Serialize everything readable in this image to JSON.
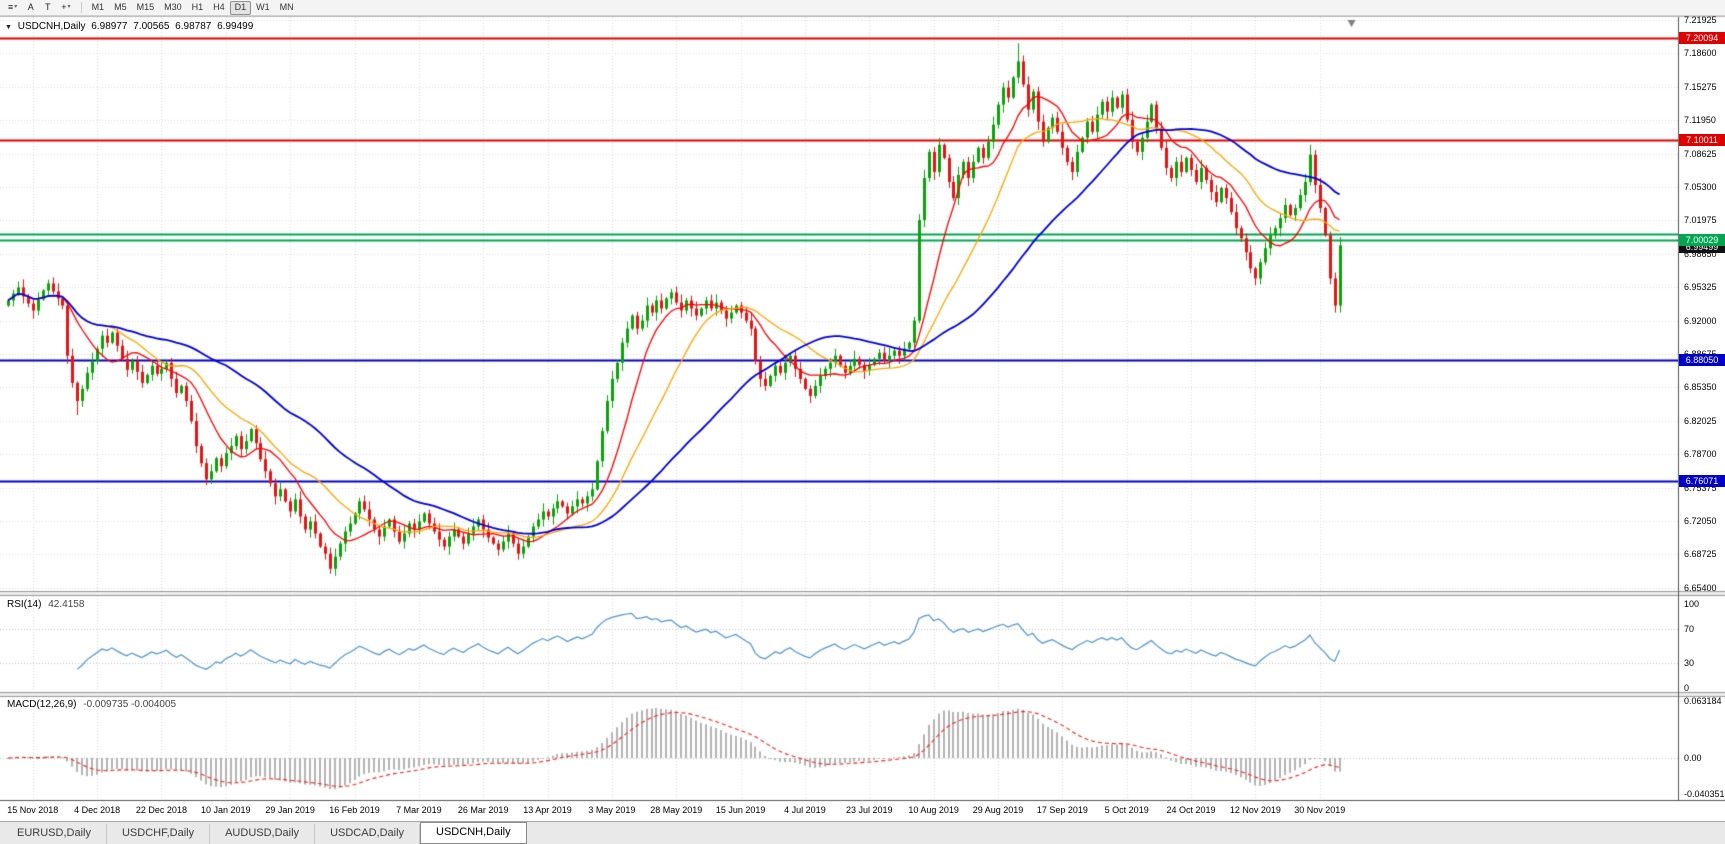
{
  "toolbar": {
    "tools": [
      {
        "name": "chart-list",
        "glyph": "≡",
        "caret": true
      },
      {
        "name": "font-tool",
        "glyph": "A",
        "caret": false
      },
      {
        "name": "text-tool",
        "glyph": "T",
        "caret": false
      },
      {
        "name": "crosshair-tool",
        "glyph": "+",
        "caret": true
      }
    ],
    "timeframes": [
      "M1",
      "M5",
      "M15",
      "M30",
      "H1",
      "H4",
      "D1",
      "W1",
      "MN"
    ],
    "active_timeframe": "D1"
  },
  "icons": {
    "collapse": "▼"
  },
  "chart": {
    "info": {
      "symbol": "USDCNH,Daily",
      "open": "6.98977",
      "high": "7.00565",
      "low": "6.98787",
      "close": "6.99499"
    }
  },
  "chart_data": {
    "type": "candlestick",
    "title": "USDCNH,Daily",
    "first_open": 6.935,
    "closes": [
      6.94,
      6.947,
      6.953,
      6.944,
      6.937,
      6.93,
      6.941,
      6.95,
      6.957,
      6.949,
      6.942,
      6.935,
      6.885,
      6.858,
      6.84,
      6.852,
      6.868,
      6.88,
      6.892,
      6.905,
      6.898,
      6.908,
      6.895,
      6.882,
      6.871,
      6.88,
      6.869,
      6.858,
      6.866,
      6.875,
      6.867,
      6.872,
      6.878,
      6.862,
      6.848,
      6.855,
      6.84,
      6.82,
      6.795,
      6.778,
      6.762,
      6.77,
      6.783,
      6.775,
      6.788,
      6.795,
      6.805,
      6.792,
      6.8,
      6.812,
      6.798,
      6.782,
      6.77,
      6.758,
      6.745,
      6.752,
      6.74,
      6.73,
      6.742,
      6.725,
      6.712,
      6.72,
      6.708,
      6.695,
      6.688,
      6.673,
      6.685,
      6.698,
      6.71,
      6.718,
      6.728,
      6.74,
      6.732,
      6.722,
      6.712,
      6.705,
      6.715,
      6.722,
      6.71,
      6.7,
      6.708,
      6.718,
      6.712,
      6.72,
      6.728,
      6.718,
      6.71,
      6.702,
      6.695,
      6.705,
      6.712,
      6.705,
      6.698,
      6.708,
      6.715,
      6.722,
      6.712,
      6.704,
      6.698,
      6.692,
      6.7,
      6.708,
      6.698,
      6.688,
      6.695,
      6.705,
      6.715,
      6.722,
      6.73,
      6.725,
      6.733,
      6.74,
      6.735,
      6.728,
      6.735,
      6.742,
      6.738,
      6.745,
      6.752,
      6.78,
      6.81,
      6.84,
      6.862,
      6.878,
      6.898,
      6.912,
      6.925,
      6.912,
      6.92,
      6.935,
      6.928,
      6.94,
      6.932,
      6.942,
      6.948,
      6.938,
      6.93,
      6.94,
      6.932,
      6.925,
      6.932,
      6.94,
      6.932,
      6.938,
      6.93,
      6.922,
      6.928,
      6.935,
      6.928,
      6.92,
      6.912,
      6.88,
      6.862,
      6.855,
      6.865,
      6.875,
      6.868,
      6.878,
      6.885,
      6.872,
      6.862,
      6.852,
      6.845,
      6.855,
      6.865,
      6.872,
      6.878,
      6.885,
      6.875,
      6.868,
      6.875,
      6.882,
      6.876,
      6.87,
      6.876,
      6.882,
      6.888,
      6.88,
      6.885,
      6.89,
      6.885,
      6.892,
      6.898,
      6.92,
      7.02,
      7.062,
      7.088,
      7.068,
      7.095,
      7.082,
      7.058,
      7.042,
      7.065,
      7.078,
      7.062,
      7.078,
      7.092,
      7.082,
      7.098,
      7.115,
      7.135,
      7.152,
      7.142,
      7.162,
      7.178,
      7.155,
      7.13,
      7.148,
      7.118,
      7.098,
      7.112,
      7.122,
      7.108,
      7.092,
      7.078,
      7.068,
      7.088,
      7.102,
      7.118,
      7.108,
      7.125,
      7.138,
      7.128,
      7.142,
      7.132,
      7.145,
      7.12,
      7.098,
      7.088,
      7.102,
      7.118,
      7.135,
      7.112,
      7.092,
      7.072,
      7.062,
      7.078,
      7.068,
      7.082,
      7.07,
      7.058,
      7.072,
      7.06,
      7.048,
      7.038,
      7.052,
      7.042,
      7.028,
      7.012,
      7.002,
      6.988,
      6.972,
      6.962,
      6.978,
      6.992,
      7.005,
      7.012,
      7.022,
      7.035,
      7.025,
      7.032,
      7.045,
      7.058,
      7.085,
      7.055,
      7.032,
      7.005,
      6.962,
      6.935,
      6.995
    ],
    "extremes": [
      {
        "i": 14,
        "low": 6.826
      },
      {
        "i": 40,
        "low": 6.756
      },
      {
        "i": 65,
        "low": 6.668
      },
      {
        "i": 103,
        "low": 6.682
      },
      {
        "i": 162,
        "low": 6.838
      },
      {
        "i": 204,
        "high": 7.196
      },
      {
        "i": 252,
        "low": 6.955
      },
      {
        "i": 263,
        "high": 7.095
      },
      {
        "i": 268,
        "low": 6.928
      }
    ],
    "moving_averages": [
      {
        "period": 10,
        "color": "#FF0000",
        "width": 1.3
      },
      {
        "period": 21,
        "color": "#FFA500",
        "width": 1.3
      },
      {
        "period": 45,
        "color": "#0000DC",
        "width": 1.8
      }
    ],
    "hlines": [
      {
        "price": 7.20094,
        "color": "#E00000",
        "label": "7.20094",
        "width": 2
      },
      {
        "price": 7.10011,
        "color": "#E00000",
        "label": "7.10011",
        "width": 2
      },
      {
        "price": 7.00629,
        "color": "#00A650",
        "label": null,
        "width": 2
      },
      {
        "price": 7.00029,
        "color": "#00A650",
        "label": "7.00029",
        "width": 2
      },
      {
        "price": 6.8805,
        "color": "#0000C8",
        "label": "6.88050",
        "width": 2
      },
      {
        "price": 6.76071,
        "color": "#0000C8",
        "label": "6.76071",
        "width": 2
      }
    ],
    "current_price": {
      "value": 6.99499,
      "label": "6.99499",
      "color": "#111111"
    },
    "price_axis": {
      "top_value": 7.21925,
      "step": 0.03325,
      "ticks": [
        "7.21925",
        "7.18600",
        "7.15275",
        "7.11950",
        "7.08625",
        "7.05300",
        "7.01975",
        "6.98650",
        "6.95325",
        "6.92000",
        "6.88675",
        "6.85350",
        "6.82025",
        "6.78700",
        "6.75375",
        "6.72050",
        "6.68725",
        "6.65400"
      ]
    },
    "x_labels": [
      "15 Nov 2018",
      "4 Dec 2018",
      "22 Dec 2018",
      "10 Jan 2019",
      "29 Jan 2019",
      "16 Feb 2019",
      "7 Mar 2019",
      "26 Mar 2019",
      "13 Apr 2019",
      "3 May 2019",
      "28 May 2019",
      "15 Jun 2019",
      "4 Jul 2019",
      "23 Jul 2019",
      "10 Aug 2019",
      "29 Aug 2019",
      "17 Sep 2019",
      "5 Oct 2019",
      "24 Oct 2019",
      "12 Nov 2019",
      "30 Nov 2019"
    ],
    "rsi": {
      "label": "RSI(14)",
      "value": "42.4158",
      "period": 14,
      "levels": [
        70,
        30
      ],
      "color": "#4F94CD",
      "axis_ticks": [
        {
          "v": 100,
          "t": "100"
        },
        {
          "v": 70,
          "t": "70"
        },
        {
          "v": 30,
          "t": "30"
        },
        {
          "v": 0,
          "t": "0"
        }
      ]
    },
    "macd": {
      "label": "MACD(12,26,9)",
      "value": "-0.009735 -0.004005",
      "fast": 12,
      "slow": 26,
      "signal_period": 9,
      "histogram_color": "#B4B4B4",
      "signal_color": "#FF2020",
      "axis_ticks": [
        {
          "v": 0.063184,
          "t": "0.063184"
        },
        {
          "v": 0,
          "t": "0.00"
        },
        {
          "v": -0.040351,
          "t": "-0.040351"
        }
      ]
    },
    "colors": {
      "bull": "#0AA30A",
      "bear": "#E81414",
      "grid": "#DCDCDC"
    }
  },
  "tabs": [
    {
      "label": "EURUSD,Daily",
      "active": false
    },
    {
      "label": "USDCHF,Daily",
      "active": false
    },
    {
      "label": "AUDUSD,Daily",
      "active": false
    },
    {
      "label": "USDCAD,Daily",
      "active": false
    },
    {
      "label": "USDCNH,Daily",
      "active": true
    }
  ]
}
